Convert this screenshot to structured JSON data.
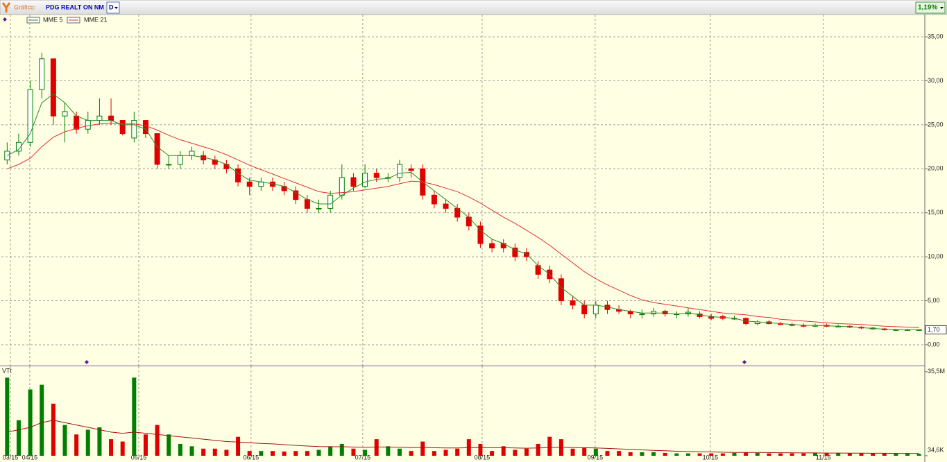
{
  "toolbar": {
    "label": "Gráfico:",
    "instrument": "PDG REALT ON NM",
    "period": "D",
    "change": "1,19%"
  },
  "chart_data": {
    "type": "candlestick",
    "xlim": [
      0,
      80
    ],
    "xticks": [
      {
        "value": 0.78,
        "label": "03/15"
      },
      {
        "value": 2.46,
        "label": "04/15"
      },
      {
        "value": 11.9,
        "label": "05/15"
      },
      {
        "value": 21.63,
        "label": "06/15"
      },
      {
        "value": 31.31,
        "label": "07/15"
      },
      {
        "value": 41.65,
        "label": "08/15"
      },
      {
        "value": 51.44,
        "label": "09/15"
      },
      {
        "value": 61.42,
        "label": "10/15"
      },
      {
        "value": 71.21,
        "label": "11/15"
      }
    ],
    "ylim": [
      -2.37,
      37.53
    ],
    "yticks": [
      {
        "value": 0,
        "label": "0,00"
      },
      {
        "value": 5,
        "label": "5,00"
      },
      {
        "value": 10,
        "label": "10,00"
      },
      {
        "value": 15,
        "label": "15,00"
      },
      {
        "value": 20,
        "label": "20,00"
      },
      {
        "value": 25,
        "label": "25,00"
      },
      {
        "value": 30,
        "label": "30,00"
      },
      {
        "value": 35,
        "label": "35,00"
      }
    ],
    "grid": true,
    "up_color": "#008000",
    "down_color": "#e00000",
    "open": [
      21,
      22,
      23,
      29,
      32.5,
      26,
      26,
      24.5,
      25.5,
      26,
      25.5,
      23.5,
      25.5,
      24,
      20.5,
      20.5,
      21.5,
      21.5,
      21,
      20.5,
      20,
      18.5,
      18,
      18.5,
      18,
      17.5,
      16.5,
      15.5,
      15.5,
      17,
      19,
      18,
      19.5,
      19,
      19,
      20,
      20,
      17,
      16,
      15.5,
      14.5,
      13.5,
      11.5,
      11.5,
      11,
      10.5,
      9,
      8.5,
      7.5,
      5,
      4.5,
      3.5,
      4.5,
      4,
      3.8,
      3.5,
      3.5,
      3.8,
      3.5,
      3.5,
      3.5,
      3.2,
      3.2,
      3,
      3,
      2.4,
      2.6,
      2.4,
      2.3,
      2.2,
      2.1,
      2.2,
      2.1,
      2.1,
      2,
      1.9,
      1.8,
      1.7,
      1.7,
      1.7
    ],
    "high": [
      23,
      24,
      30,
      33.2,
      32.5,
      27.5,
      26.5,
      26.5,
      28,
      28,
      25.5,
      26.5,
      25.5,
      24,
      21.5,
      22,
      22.5,
      22,
      21.5,
      21,
      20.5,
      19,
      19,
      19,
      18.5,
      18,
      17,
      16.5,
      17.5,
      20.5,
      19.5,
      20.5,
      20,
      19.5,
      21,
      20.5,
      20.5,
      17.5,
      16.5,
      16,
      15,
      14,
      12,
      12,
      11.5,
      11,
      9.5,
      9,
      8,
      5.5,
      5,
      5,
      5,
      4.5,
      4,
      4,
      4.2,
      4,
      3.8,
      4.2,
      3.8,
      3.5,
      3.4,
      3.3,
      3.1,
      2.8,
      2.8,
      2.6,
      2.5,
      2.4,
      2.4,
      2.4,
      2.3,
      2.2,
      2.1,
      2,
      1.9,
      1.8,
      1.8,
      1.75
    ],
    "low": [
      20.5,
      21.5,
      22.5,
      28,
      25,
      23,
      24,
      24,
      25,
      25,
      23.8,
      23,
      23.5,
      20,
      20,
      20,
      21,
      20.5,
      20,
      19.5,
      18,
      17,
      17.5,
      17.5,
      17,
      16,
      15,
      15,
      15,
      16.5,
      17.5,
      17.8,
      18.5,
      18.5,
      18.5,
      19,
      16.5,
      15.5,
      15,
      14,
      13,
      11,
      10.5,
      10.5,
      9.5,
      9.5,
      7.5,
      7,
      4.5,
      4,
      3,
      3,
      3.5,
      3.5,
      3,
      3,
      3.2,
      3.2,
      3,
      3.2,
      3,
      2.8,
      2.8,
      2.8,
      2.2,
      2.2,
      2.3,
      2.2,
      2.1,
      2,
      2,
      2,
      2,
      1.9,
      1.8,
      1.7,
      1.6,
      1.6,
      1.6,
      1.65
    ],
    "close": [
      22,
      23,
      29,
      32.5,
      26,
      26.5,
      24.5,
      25.5,
      26,
      25.5,
      24,
      25.5,
      24,
      20.5,
      20.5,
      21.5,
      22,
      21,
      20.5,
      20,
      18.5,
      18,
      18.5,
      18,
      17.5,
      16.5,
      15.5,
      15.5,
      17,
      19,
      18,
      19.5,
      19,
      19,
      20.5,
      19.8,
      17,
      16,
      15.5,
      14.5,
      13.5,
      11.5,
      11,
      11,
      10,
      10,
      8,
      7.5,
      5,
      4.5,
      3.5,
      4.5,
      4,
      3.8,
      3.5,
      3.5,
      3.8,
      3.5,
      3.5,
      3.7,
      3.2,
      3,
      3,
      3,
      2.4,
      2.6,
      2.4,
      2.3,
      2.2,
      2.1,
      2.2,
      2.1,
      2.1,
      2,
      1.9,
      1.8,
      1.7,
      1.7,
      1.7,
      1.7
    ],
    "series": [
      {
        "name": "MME 5",
        "color": "#2a8a2a",
        "values": [
          21.5,
          22.2,
          24,
          27.5,
          28.5,
          27.5,
          26,
          25.5,
          25.5,
          25.5,
          25,
          25,
          24.5,
          22.5,
          21.5,
          21.5,
          21.5,
          21.3,
          21,
          20.5,
          19.5,
          18.7,
          18.5,
          18.3,
          18,
          17.3,
          16.5,
          16,
          16,
          17,
          17.8,
          18.5,
          18.8,
          18.9,
          19.5,
          19.6,
          18.5,
          17.5,
          16.5,
          15.5,
          14.5,
          13,
          12,
          11.5,
          10.8,
          10.3,
          9,
          8,
          6.5,
          5.5,
          4.5,
          4.5,
          4.3,
          4,
          3.8,
          3.6,
          3.6,
          3.6,
          3.5,
          3.6,
          3.4,
          3.2,
          3.1,
          3.0,
          2.7,
          2.6,
          2.5,
          2.4,
          2.3,
          2.2,
          2.2,
          2.15,
          2.1,
          2.05,
          1.95,
          1.85,
          1.78,
          1.72,
          1.7,
          1.7
        ]
      },
      {
        "name": "MME 21",
        "color": "#e03030",
        "values": [
          20,
          20.5,
          21.2,
          22.5,
          23.6,
          24.2,
          24.6,
          24.9,
          25.1,
          25.2,
          25.1,
          25.1,
          24.9,
          24.4,
          23.8,
          23.3,
          22.9,
          22.5,
          22.1,
          21.6,
          21,
          20.4,
          19.9,
          19.4,
          18.9,
          18.4,
          17.9,
          17.4,
          17.2,
          17.3,
          17.4,
          17.6,
          17.8,
          18.0,
          18.3,
          18.6,
          18.5,
          18.2,
          17.8,
          17.4,
          16.8,
          16.1,
          15.3,
          14.5,
          13.8,
          13,
          12.2,
          11.3,
          10.3,
          9.3,
          8.3,
          7.5,
          6.8,
          6.2,
          5.6,
          5.1,
          4.8,
          4.6,
          4.4,
          4.2,
          4,
          3.8,
          3.6,
          3.5,
          3.4,
          3.2,
          3.1,
          2.9,
          2.8,
          2.7,
          2.6,
          2.5,
          2.4,
          2.35,
          2.3,
          2.2,
          2.1,
          2.05,
          2,
          1.95
        ]
      }
    ],
    "last_price": {
      "value": 1.7,
      "label": "1,70"
    },
    "volume": {
      "label": "VTt",
      "ylim": [
        0,
        37.8
      ],
      "yticks": [
        {
          "value": 35.5,
          "label": "35,5M"
        },
        {
          "value": 0.0346,
          "label": "34,6K"
        }
      ],
      "values": [
        33,
        15,
        28,
        30,
        22,
        13,
        9,
        11,
        12,
        7,
        6,
        33,
        9,
        13,
        9,
        5,
        4,
        3,
        3,
        2.5,
        8,
        2,
        2,
        2,
        1.8,
        2,
        2,
        2.5,
        4,
        5,
        3,
        2.5,
        7,
        4,
        3,
        2,
        6,
        2,
        2.5,
        3,
        7,
        5,
        2,
        4,
        2.5,
        3,
        5,
        8,
        7,
        3,
        3.5,
        3,
        2,
        2,
        1.5,
        1.5,
        1.5,
        1.2,
        1,
        1,
        1,
        1,
        1,
        1.2,
        1.5,
        1.2,
        1,
        1,
        1,
        1,
        1.3,
        1.2,
        1.1,
        1,
        1,
        1,
        1,
        1,
        0.9,
        0.8
      ],
      "average_color": "#a01010",
      "average": [
        10,
        11,
        12,
        14,
        15,
        14,
        13,
        12,
        11,
        10,
        9.5,
        10,
        9.5,
        9,
        8.5,
        8,
        7.5,
        7,
        6.5,
        6,
        5.8,
        5.5,
        5.2,
        5,
        4.7,
        4.4,
        4.1,
        3.9,
        3.8,
        3.8,
        3.7,
        3.6,
        3.7,
        3.7,
        3.6,
        3.5,
        3.5,
        3.4,
        3.3,
        3.3,
        3.4,
        3.5,
        3.4,
        3.4,
        3.3,
        3.2,
        3.3,
        3.5,
        3.6,
        3.5,
        3.4,
        3.3,
        3.1,
        2.9,
        2.7,
        2.5,
        2.3,
        2.1,
        1.9,
        1.8,
        1.7,
        1.6,
        1.5,
        1.4,
        1.4,
        1.4,
        1.35,
        1.3,
        1.25,
        1.2,
        1.2,
        1.15,
        1.15,
        1.1,
        1.1,
        1.05,
        1.05,
        1,
        1,
        0.95
      ]
    }
  }
}
